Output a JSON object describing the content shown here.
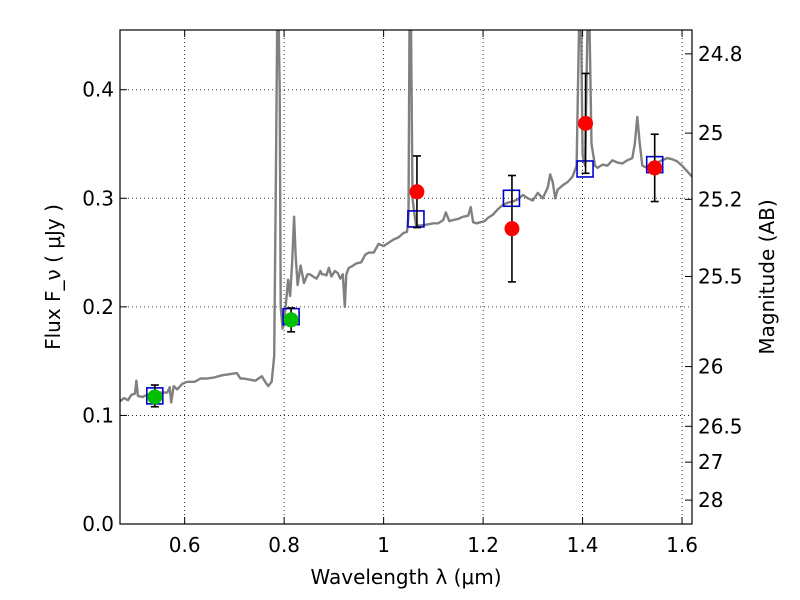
{
  "chart_data": {
    "type": "line",
    "xlabel": "Wavelength  λ (μm)",
    "ylabel": "Flux  F_ν  ( μJy )",
    "ylabel_right": "Magnitude (AB)",
    "xlim": [
      0.47,
      1.62
    ],
    "ylim": [
      0.0,
      0.455
    ],
    "grid": true,
    "x_ticks": [
      0.6,
      0.8,
      1.0,
      1.2,
      1.4,
      1.6
    ],
    "x_tick_labels": [
      "0.6",
      "0.8",
      "1",
      "1.2",
      "1.4",
      "1.6"
    ],
    "y_ticks": [
      0.0,
      0.1,
      0.2,
      0.3,
      0.4
    ],
    "y_tick_labels": [
      "0.0",
      "0.1",
      "0.2",
      "0.3",
      "0.4"
    ],
    "mag_ticks": [
      {
        "label": "24.8",
        "flux": 0.433
      },
      {
        "label": "25",
        "flux": 0.36
      },
      {
        "label": "25.2",
        "flux": 0.299
      },
      {
        "label": "25.5",
        "flux": 0.228
      },
      {
        "label": "26",
        "flux": 0.145
      },
      {
        "label": "26.5",
        "flux": 0.09
      },
      {
        "label": "27",
        "flux": 0.057
      },
      {
        "label": "28",
        "flux": 0.022
      }
    ],
    "series": [
      {
        "style": "model-spectrum",
        "color": "#808080",
        "points": [
          [
            0.47,
            0.113
          ],
          [
            0.478,
            0.116
          ],
          [
            0.486,
            0.114
          ],
          [
            0.493,
            0.119
          ],
          [
            0.5,
            0.12
          ],
          [
            0.503,
            0.132
          ],
          [
            0.506,
            0.118
          ],
          [
            0.515,
            0.117
          ],
          [
            0.525,
            0.119
          ],
          [
            0.535,
            0.12
          ],
          [
            0.545,
            0.121
          ],
          [
            0.555,
            0.121
          ],
          [
            0.565,
            0.121
          ],
          [
            0.57,
            0.126
          ],
          [
            0.573,
            0.112
          ],
          [
            0.578,
            0.127
          ],
          [
            0.585,
            0.124
          ],
          [
            0.595,
            0.129
          ],
          [
            0.605,
            0.131
          ],
          [
            0.62,
            0.131
          ],
          [
            0.632,
            0.134
          ],
          [
            0.645,
            0.134
          ],
          [
            0.66,
            0.135
          ],
          [
            0.675,
            0.137
          ],
          [
            0.69,
            0.138
          ],
          [
            0.705,
            0.139
          ],
          [
            0.712,
            0.134
          ],
          [
            0.718,
            0.134
          ],
          [
            0.73,
            0.133
          ],
          [
            0.742,
            0.132
          ],
          [
            0.755,
            0.136
          ],
          [
            0.762,
            0.131
          ],
          [
            0.768,
            0.127
          ],
          [
            0.775,
            0.131
          ],
          [
            0.78,
            0.155
          ],
          [
            0.783,
            0.3
          ],
          [
            0.786,
            0.46
          ],
          [
            0.789,
            0.46
          ],
          [
            0.791,
            0.4
          ],
          [
            0.793,
            0.2
          ],
          [
            0.797,
            0.18
          ],
          [
            0.802,
            0.195
          ],
          [
            0.808,
            0.225
          ],
          [
            0.812,
            0.21
          ],
          [
            0.816,
            0.24
          ],
          [
            0.82,
            0.283
          ],
          [
            0.823,
            0.248
          ],
          [
            0.827,
            0.22
          ],
          [
            0.833,
            0.238
          ],
          [
            0.84,
            0.222
          ],
          [
            0.847,
            0.23
          ],
          [
            0.852,
            0.23
          ],
          [
            0.858,
            0.228
          ],
          [
            0.865,
            0.226
          ],
          [
            0.87,
            0.23
          ],
          [
            0.873,
            0.233
          ],
          [
            0.876,
            0.23
          ],
          [
            0.88,
            0.23
          ],
          [
            0.885,
            0.229
          ],
          [
            0.89,
            0.236
          ],
          [
            0.895,
            0.228
          ],
          [
            0.902,
            0.233
          ],
          [
            0.908,
            0.231
          ],
          [
            0.913,
            0.226
          ],
          [
            0.918,
            0.23
          ],
          [
            0.922,
            0.2
          ],
          [
            0.925,
            0.23
          ],
          [
            0.93,
            0.236
          ],
          [
            0.935,
            0.237
          ],
          [
            0.945,
            0.24
          ],
          [
            0.955,
            0.241
          ],
          [
            0.963,
            0.248
          ],
          [
            0.97,
            0.25
          ],
          [
            0.98,
            0.25
          ],
          [
            0.99,
            0.258
          ],
          [
            1.0,
            0.256
          ],
          [
            1.01,
            0.259
          ],
          [
            1.02,
            0.262
          ],
          [
            1.03,
            0.264
          ],
          [
            1.04,
            0.268
          ],
          [
            1.047,
            0.269
          ],
          [
            1.05,
            0.285
          ],
          [
            1.052,
            0.46
          ],
          [
            1.055,
            0.46
          ],
          [
            1.058,
            0.3
          ],
          [
            1.065,
            0.275
          ],
          [
            1.075,
            0.275
          ],
          [
            1.09,
            0.276
          ],
          [
            1.1,
            0.277
          ],
          [
            1.11,
            0.277
          ],
          [
            1.12,
            0.28
          ],
          [
            1.125,
            0.287
          ],
          [
            1.132,
            0.279
          ],
          [
            1.14,
            0.28
          ],
          [
            1.15,
            0.281
          ],
          [
            1.16,
            0.283
          ],
          [
            1.17,
            0.284
          ],
          [
            1.175,
            0.292
          ],
          [
            1.18,
            0.278
          ],
          [
            1.187,
            0.277
          ],
          [
            1.195,
            0.278
          ],
          [
            1.203,
            0.279
          ],
          [
            1.21,
            0.282
          ],
          [
            1.22,
            0.285
          ],
          [
            1.23,
            0.29
          ],
          [
            1.24,
            0.294
          ],
          [
            1.25,
            0.296
          ],
          [
            1.26,
            0.297
          ],
          [
            1.27,
            0.299
          ],
          [
            1.28,
            0.303
          ],
          [
            1.29,
            0.3
          ],
          [
            1.3,
            0.298
          ],
          [
            1.31,
            0.305
          ],
          [
            1.32,
            0.3
          ],
          [
            1.33,
            0.31
          ],
          [
            1.335,
            0.322
          ],
          [
            1.34,
            0.315
          ],
          [
            1.345,
            0.3
          ],
          [
            1.35,
            0.308
          ],
          [
            1.36,
            0.312
          ],
          [
            1.37,
            0.315
          ],
          [
            1.38,
            0.32
          ],
          [
            1.388,
            0.33
          ],
          [
            1.393,
            0.46
          ],
          [
            1.397,
            0.46
          ],
          [
            1.4,
            0.34
          ],
          [
            1.405,
            0.33
          ],
          [
            1.41,
            0.46
          ],
          [
            1.414,
            0.46
          ],
          [
            1.418,
            0.35
          ],
          [
            1.425,
            0.33
          ],
          [
            1.43,
            0.328
          ],
          [
            1.44,
            0.331
          ],
          [
            1.45,
            0.33
          ],
          [
            1.46,
            0.335
          ],
          [
            1.47,
            0.333
          ],
          [
            1.48,
            0.332
          ],
          [
            1.49,
            0.335
          ],
          [
            1.5,
            0.337
          ],
          [
            1.505,
            0.35
          ],
          [
            1.51,
            0.375
          ],
          [
            1.515,
            0.35
          ],
          [
            1.52,
            0.33
          ],
          [
            1.53,
            0.328
          ],
          [
            1.54,
            0.332
          ],
          [
            1.55,
            0.333
          ],
          [
            1.56,
            0.335
          ],
          [
            1.57,
            0.337
          ],
          [
            1.58,
            0.336
          ],
          [
            1.59,
            0.334
          ],
          [
            1.6,
            0.33
          ],
          [
            1.61,
            0.325
          ],
          [
            1.62,
            0.32
          ]
        ]
      },
      {
        "style": "synthetic-photometry",
        "color": "#0000cc",
        "marker": "open-square",
        "points": [
          [
            0.54,
            0.118
          ],
          [
            0.814,
            0.191
          ],
          [
            1.065,
            0.281
          ],
          [
            1.257,
            0.3
          ],
          [
            1.405,
            0.327
          ],
          [
            1.545,
            0.331
          ]
        ]
      },
      {
        "style": "observed-red",
        "color": "#ff0000",
        "marker": "filled-circle",
        "points": [
          [
            1.067,
            0.306
          ],
          [
            1.258,
            0.272
          ],
          [
            1.406,
            0.369
          ],
          [
            1.545,
            0.328
          ]
        ],
        "errors": [
          [
            0.033,
            0.033
          ],
          [
            0.049,
            0.049
          ],
          [
            0.046,
            0.046
          ],
          [
            0.031,
            0.031
          ]
        ]
      },
      {
        "style": "observed-green",
        "color": "#00c000",
        "marker": "filled-circle",
        "points": [
          [
            0.54,
            0.117
          ],
          [
            0.814,
            0.188
          ]
        ],
        "errors": [
          [
            0.009,
            0.011
          ],
          [
            0.011,
            0.011
          ]
        ]
      }
    ]
  }
}
